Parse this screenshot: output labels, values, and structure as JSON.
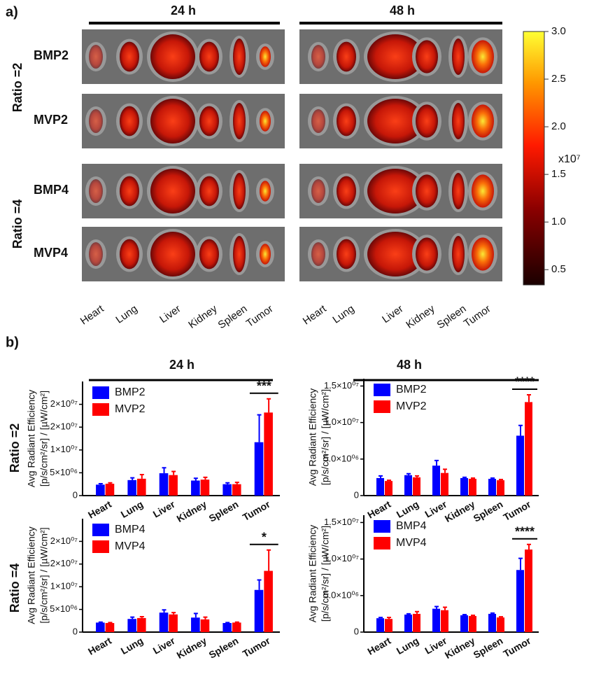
{
  "panel_a": {
    "label": "a)",
    "columns": [
      "24 h",
      "48 h"
    ],
    "rows": [
      "Ratio =2",
      "Ratio =4"
    ],
    "samples": [
      "BMP2",
      "MVP2",
      "BMP4",
      "MVP4"
    ],
    "organs": [
      "Heart",
      "Lung",
      "Liver",
      "Kidney",
      "Spleen",
      "Tumor"
    ],
    "colorbar": {
      "lim": [
        0.34,
        3.0
      ],
      "ticks": [
        {
          "value": 3,
          "label": "3.0"
        },
        2.5,
        {
          "value": 2,
          "label": "2.0"
        },
        1.5,
        {
          "value": 1,
          "label": "1.0"
        },
        0.5
      ],
      "exponent": "x10⁷"
    }
  },
  "panel_b": {
    "label": "b)",
    "columns": [
      "24 h",
      "48 h"
    ],
    "rows": [
      "Ratio =2",
      "Ratio =4"
    ]
  },
  "chart_data": [
    {
      "type": "bar",
      "ylabel": [
        "Avg Radiant Efficiency",
        "[p/s/cm²/sr] / [µW/cm²]"
      ],
      "categories": [
        "Heart",
        "Lung",
        "Liver",
        "Kidney",
        "Spleen",
        "Tumor"
      ],
      "series": [
        {
          "name": "BMP2",
          "color": "#0000ff",
          "values": [
            2400000,
            3400000,
            4900000,
            3300000,
            2500000,
            11700000
          ],
          "errors": [
            200000,
            500000,
            1200000,
            500000,
            300000,
            6000000
          ]
        },
        {
          "name": "MVP2",
          "color": "#ff0000",
          "values": [
            2600000,
            3700000,
            4500000,
            3500000,
            2500000,
            18200000
          ],
          "errors": [
            200000,
            900000,
            800000,
            500000,
            400000,
            3000000
          ]
        }
      ],
      "ylim": [
        0,
        25000000
      ],
      "yticks": [
        0,
        {
          "value": 5000000,
          "label": "5×10⁰⁶"
        },
        {
          "value": 10000000,
          "label": "1×10⁰⁷"
        },
        {
          "value": 15000000,
          "label": "2×10⁰⁷"
        },
        {
          "value": 20000000,
          "label": "2×10⁰⁷"
        }
      ],
      "significance": "***"
    },
    {
      "type": "bar",
      "ylabel": [
        "Avg Radiant Efficiency",
        "[p/s/cm²/sr] / [µW/cm²]"
      ],
      "categories": [
        "Heart",
        "Lung",
        "Liver",
        "Kidney",
        "Spleen",
        "Tumor"
      ],
      "series": [
        {
          "name": "BMP2",
          "color": "#0000ff",
          "values": [
            2400000,
            2800000,
            4100000,
            2400000,
            2300000,
            8200000
          ],
          "errors": [
            300000,
            200000,
            700000,
            100000,
            100000,
            1400000
          ]
        },
        {
          "name": "MVP2",
          "color": "#ff0000",
          "values": [
            2000000,
            2500000,
            3100000,
            2300000,
            2100000,
            12800000
          ],
          "errors": [
            100000,
            200000,
            500000,
            100000,
            100000,
            1000000
          ]
        }
      ],
      "ylim": [
        0,
        16000000
      ],
      "yticks": [
        0,
        {
          "value": 5000000,
          "label": "5.0×10⁰⁶"
        },
        {
          "value": 10000000,
          "label": "1.0×10⁰⁷"
        },
        {
          "value": 15000000,
          "label": "1.5×10⁰⁷"
        }
      ],
      "significance": "****"
    },
    {
      "type": "bar",
      "ylabel": [
        "Avg Radiant Efficiency",
        "[p/s/cm²/sr] / [µW/cm²]"
      ],
      "categories": [
        "Heart",
        "Lung",
        "Liver",
        "Kidney",
        "Spleen",
        "Tumor"
      ],
      "series": [
        {
          "name": "BMP4",
          "color": "#0000ff",
          "values": [
            2100000,
            2900000,
            4300000,
            3200000,
            2000000,
            9300000
          ],
          "errors": [
            100000,
            400000,
            600000,
            900000,
            100000,
            2200000
          ]
        },
        {
          "name": "MVP4",
          "color": "#ff0000",
          "values": [
            2000000,
            3100000,
            3900000,
            2800000,
            2100000,
            13500000
          ],
          "errors": [
            100000,
            300000,
            400000,
            500000,
            100000,
            4600000
          ]
        }
      ],
      "ylim": [
        0,
        25000000
      ],
      "yticks": [
        0,
        {
          "value": 5000000,
          "label": "5×10⁰⁶"
        },
        {
          "value": 10000000,
          "label": "1×10⁰⁷"
        },
        {
          "value": 15000000,
          "label": "2×10⁰⁷"
        },
        {
          "value": 20000000,
          "label": "2×10⁰⁷"
        }
      ],
      "significance": "*"
    },
    {
      "type": "bar",
      "ylabel": [
        "Avg Radiant Efficiency",
        "[p/s/cm²/sr] / [µW/cm²]"
      ],
      "categories": [
        "Heart",
        "Lung",
        "Liver",
        "Kidney",
        "Spleen",
        "Tumor"
      ],
      "series": [
        {
          "name": "BMP4",
          "color": "#0000ff",
          "values": [
            1900000,
            2400000,
            3200000,
            2300000,
            2500000,
            8500000
          ],
          "errors": [
            100000,
            100000,
            300000,
            100000,
            100000,
            1600000
          ]
        },
        {
          "name": "MVP4",
          "color": "#ff0000",
          "values": [
            1800000,
            2500000,
            3000000,
            2200000,
            2000000,
            11300000
          ],
          "errors": [
            200000,
            300000,
            400000,
            100000,
            100000,
            700000
          ]
        }
      ],
      "ylim": [
        0,
        16000000
      ],
      "yticks": [
        0,
        {
          "value": 5000000,
          "label": "5.0×10⁰⁶"
        },
        {
          "value": 10000000,
          "label": "1.0×10⁰⁷"
        },
        {
          "value": 15000000,
          "label": "1.5×10⁰⁷"
        }
      ],
      "significance": "****"
    }
  ]
}
